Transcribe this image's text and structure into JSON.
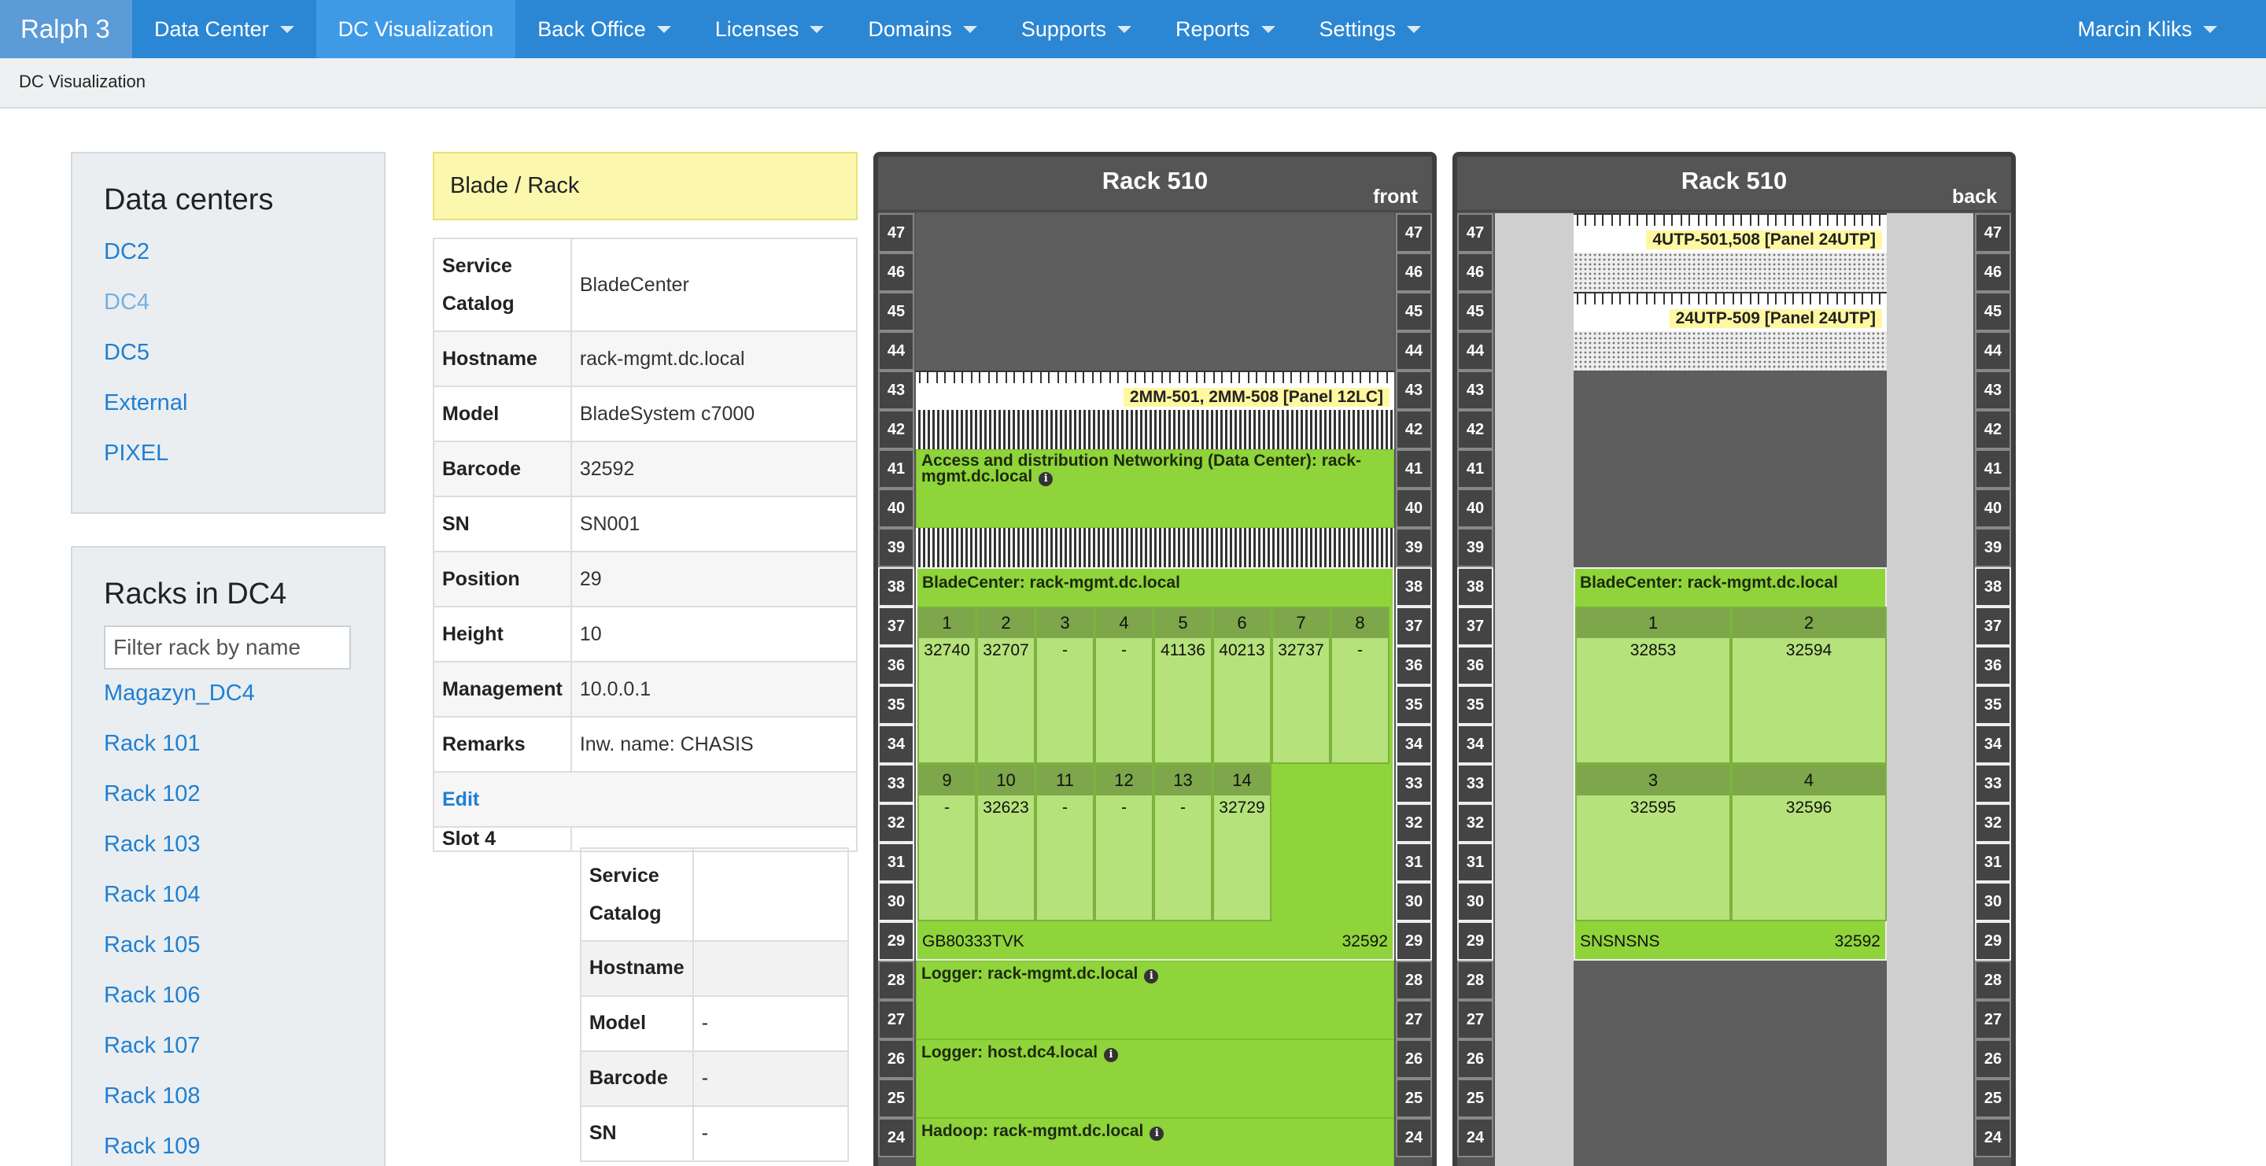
{
  "nav": {
    "brand": "Ralph 3",
    "items": [
      {
        "label": "Data Center",
        "caret": true
      },
      {
        "label": "DC Visualization",
        "caret": false,
        "active": true
      },
      {
        "label": "Back Office",
        "caret": true
      },
      {
        "label": "Licenses",
        "caret": true
      },
      {
        "label": "Domains",
        "caret": true
      },
      {
        "label": "Supports",
        "caret": true
      },
      {
        "label": "Reports",
        "caret": true
      },
      {
        "label": "Settings",
        "caret": true
      }
    ],
    "user": "Marcin Kliks"
  },
  "breadcrumb": "DC Visualization",
  "datacenters": {
    "title": "Data centers",
    "items": [
      "DC2",
      "DC4",
      "DC5",
      "External",
      "PIXEL"
    ],
    "selected": "DC4"
  },
  "racks": {
    "title": "Racks in DC4",
    "filter_placeholder": "Filter rack by name",
    "items": [
      "Magazyn_DC4",
      "Rack 101",
      "Rack 102",
      "Rack 103",
      "Rack 104",
      "Rack 105",
      "Rack 106",
      "Rack 107",
      "Rack 108",
      "Rack 109"
    ]
  },
  "details": {
    "header": "Blade / Rack",
    "rows": [
      {
        "key": "Service Catalog",
        "value": "BladeCenter"
      },
      {
        "key": "Hostname",
        "value": "rack-mgmt.dc.local"
      },
      {
        "key": "Model",
        "value": "BladeSystem c7000"
      },
      {
        "key": "Barcode",
        "value": "32592"
      },
      {
        "key": "SN",
        "value": "SN001"
      },
      {
        "key": "Position",
        "value": "29"
      },
      {
        "key": "Height",
        "value": "10"
      },
      {
        "key": "Management",
        "value": "10.0.0.1"
      },
      {
        "key": "Remarks",
        "value": "Inw. name: CHASIS"
      }
    ],
    "edit_label": "Edit",
    "slot": {
      "label": "Slot 4",
      "rows": [
        {
          "key": "Service Catalog",
          "value": ""
        },
        {
          "key": "Hostname",
          "value": ""
        },
        {
          "key": "Model",
          "value": "-"
        },
        {
          "key": "Barcode",
          "value": "-"
        },
        {
          "key": "SN",
          "value": "-"
        }
      ]
    }
  },
  "rack_front": {
    "title": "Rack 510",
    "side": "front",
    "units": [
      47,
      46,
      45,
      44,
      43,
      42,
      41,
      40,
      39,
      38,
      37,
      36,
      35,
      34,
      33,
      32,
      31,
      30,
      29,
      28,
      27,
      26,
      25,
      24
    ],
    "patch_label": "2MM-501, 2MM-508 [Panel 12LC]",
    "networking": "Access and distribution Networking (Data Center): rack-mgmt.dc.local",
    "bladecenter": "BladeCenter: rack-mgmt.dc.local",
    "slots_row1": [
      {
        "num": "1",
        "barcode": "32740"
      },
      {
        "num": "2",
        "barcode": "32707"
      },
      {
        "num": "3",
        "barcode": "-"
      },
      {
        "num": "4",
        "barcode": "-"
      },
      {
        "num": "5",
        "barcode": "41136"
      },
      {
        "num": "6",
        "barcode": "40213"
      },
      {
        "num": "7",
        "barcode": "32737"
      },
      {
        "num": "8",
        "barcode": "-"
      }
    ],
    "slots_row2": [
      {
        "num": "9",
        "barcode": "-"
      },
      {
        "num": "10",
        "barcode": "32623"
      },
      {
        "num": "11",
        "barcode": "-"
      },
      {
        "num": "12",
        "barcode": "-"
      },
      {
        "num": "13",
        "barcode": "-"
      },
      {
        "num": "14",
        "barcode": "32729"
      }
    ],
    "footer_sn": "GB80333TVK",
    "footer_barcode": "32592",
    "logger1": "Logger: rack-mgmt.dc.local",
    "logger2": "Logger: host.dc4.local",
    "hadoop": "Hadoop: rack-mgmt.dc.local"
  },
  "rack_back": {
    "title": "Rack 510",
    "side": "back",
    "patch1": "4UTP-501,508 [Panel 24UTP]",
    "patch2": "24UTP-509 [Panel 24UTP]",
    "bladecenter": "BladeCenter: rack-mgmt.dc.local",
    "slots": [
      {
        "num": "1",
        "barcode": "32853"
      },
      {
        "num": "2",
        "barcode": "32594"
      },
      {
        "num": "3",
        "barcode": "32595"
      },
      {
        "num": "4",
        "barcode": "32596"
      }
    ],
    "footer_sn": "SNSNSNS",
    "footer_barcode": "32592"
  }
}
